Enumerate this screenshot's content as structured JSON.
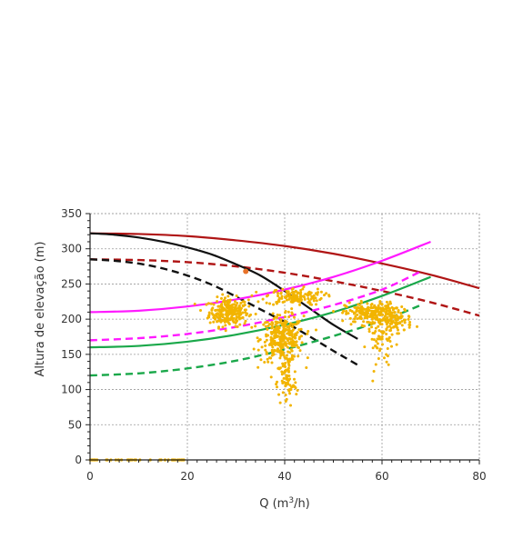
{
  "chart_data": {
    "type": "scatter",
    "xlabel": "Q (m",
    "xlabel_sup": "3",
    "xlabel_end": "/h)",
    "ylabel": "Altura de elevação (m)",
    "xlim": [
      0,
      80
    ],
    "ylim": [
      0,
      350
    ],
    "xticks": [
      0,
      20,
      40,
      60,
      80
    ],
    "yticks": [
      0,
      50,
      100,
      150,
      200,
      250,
      300,
      350
    ],
    "grid": true,
    "legend": "none",
    "curves": [
      {
        "color": "#b01515",
        "dash": "solid",
        "x": [
          0,
          10,
          20,
          30,
          40,
          50,
          60,
          70,
          80
        ],
        "y": [
          322,
          321,
          318,
          312,
          304,
          293,
          279,
          263,
          244
        ]
      },
      {
        "color": "#b01515",
        "dash": "dashed",
        "x": [
          0,
          10,
          20,
          30,
          40,
          50,
          60,
          70,
          80
        ],
        "y": [
          285,
          284,
          281,
          275,
          266,
          254,
          240,
          224,
          205
        ]
      },
      {
        "color": "#111111",
        "dash": "solid",
        "x": [
          0,
          5,
          10,
          15,
          20,
          25,
          30,
          35,
          40,
          45,
          50,
          55
        ],
        "y": [
          322,
          320,
          316,
          310,
          302,
          292,
          278,
          262,
          240,
          216,
          192,
          172
        ]
      },
      {
        "color": "#111111",
        "dash": "dashed",
        "x": [
          0,
          5,
          10,
          15,
          20,
          25,
          30,
          35,
          40,
          45,
          50,
          55
        ],
        "y": [
          285,
          283,
          279,
          272,
          262,
          249,
          232,
          214,
          196,
          176,
          155,
          135
        ]
      },
      {
        "color": "#ff1aff",
        "dash": "solid",
        "x": [
          0,
          10,
          20,
          30,
          40,
          50,
          60,
          70
        ],
        "y": [
          210,
          212,
          218,
          228,
          242,
          260,
          283,
          310
        ]
      },
      {
        "color": "#ff1aff",
        "dash": "dashed",
        "x": [
          0,
          10,
          20,
          30,
          40,
          50,
          60,
          68
        ],
        "y": [
          170,
          173,
          179,
          189,
          203,
          220,
          242,
          268
        ]
      },
      {
        "color": "#1aa84a",
        "dash": "solid",
        "x": [
          0,
          10,
          20,
          30,
          40,
          50,
          60,
          70
        ],
        "y": [
          160,
          162,
          168,
          178,
          192,
          210,
          233,
          260
        ]
      },
      {
        "color": "#1aa84a",
        "dash": "dashed",
        "x": [
          0,
          10,
          20,
          30,
          40,
          50,
          60,
          68
        ],
        "y": [
          120,
          123,
          130,
          141,
          157,
          176,
          198,
          220
        ]
      }
    ],
    "scatter_color": "#f2b400",
    "scatter_clusters": [
      {
        "cx": 28.5,
        "cy": 210,
        "sx": 2.0,
        "sy": 10,
        "n": 260
      },
      {
        "cx": 39.5,
        "cy": 172,
        "sx": 2.2,
        "sy": 16,
        "n": 320
      },
      {
        "cx": 40.5,
        "cy": 110,
        "sx": 1.0,
        "sy": 18,
        "n": 70
      },
      {
        "cx": 42,
        "cy": 232,
        "sx": 3.0,
        "sy": 6,
        "n": 140
      },
      {
        "cx": 57.5,
        "cy": 208,
        "sx": 2.5,
        "sy": 8,
        "n": 200
      },
      {
        "cx": 62.5,
        "cy": 200,
        "sx": 1.8,
        "sy": 10,
        "n": 120
      },
      {
        "cx": 60,
        "cy": 165,
        "sx": 1.5,
        "sy": 18,
        "n": 50
      }
    ],
    "scatter_zero_band": {
      "x0": 0,
      "x1": 20,
      "y": 0,
      "n": 40
    },
    "highlight_point": {
      "x": 32,
      "y": 268,
      "color": "#e8732a"
    }
  }
}
